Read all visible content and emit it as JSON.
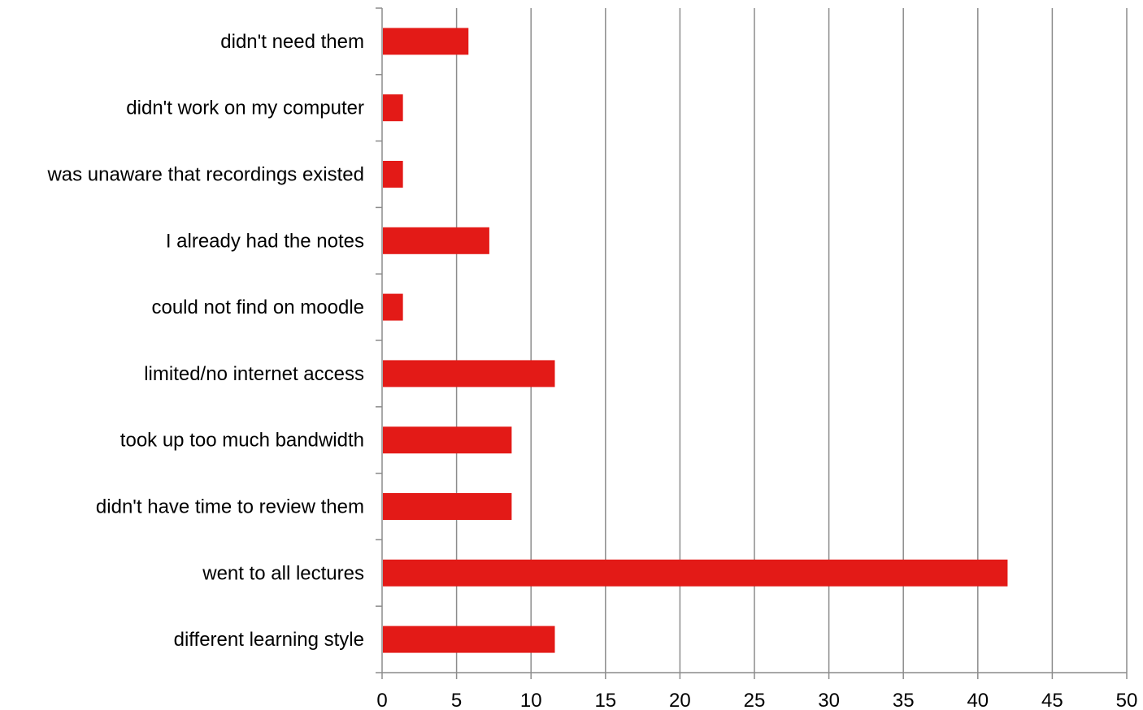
{
  "chart_data": {
    "type": "bar",
    "orientation": "horizontal",
    "categories": [
      "didn't need them",
      "didn't work on my computer",
      "was unaware that recordings existed",
      "I already had the notes",
      "could not find on moodle",
      "limited/no internet access",
      "took up too much bandwidth",
      "didn't have time to review them",
      "went to all lectures",
      "different learning style"
    ],
    "values": [
      5.8,
      1.4,
      1.4,
      7.2,
      1.4,
      11.6,
      8.7,
      8.7,
      42.0,
      11.6
    ],
    "xlim": [
      0,
      50
    ],
    "x_ticks": [
      "0",
      "5",
      "10",
      "15",
      "20",
      "25",
      "30",
      "35",
      "40",
      "45",
      "50"
    ],
    "title": "",
    "xlabel": "",
    "ylabel": "",
    "grid": "vertical",
    "legend": "none",
    "colors": {
      "bar": "#e31a17",
      "grid": "#8c8c8c",
      "axis": "#8c8c8c",
      "text": "#000000"
    }
  }
}
